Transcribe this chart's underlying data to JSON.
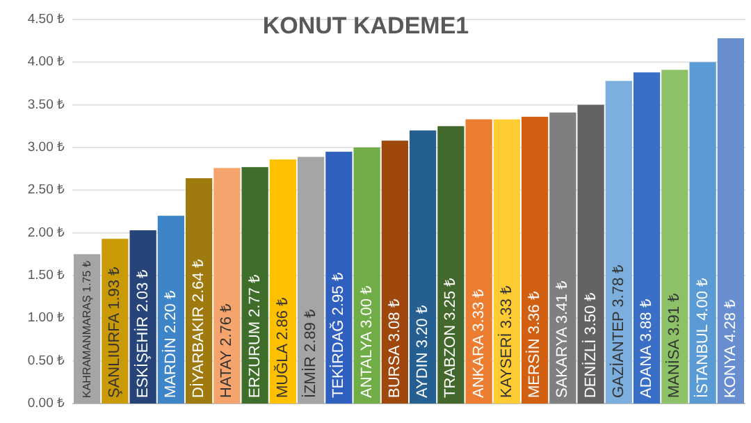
{
  "chart_data": {
    "type": "bar",
    "title": "KONUT KADEME1",
    "categories": [
      "KAHRAMANMARAŞ",
      "ŞANLIURFA",
      "ESKİŞEHİR",
      "MARDİN",
      "DİYARBAKIR",
      "HATAY",
      "ERZURUM",
      "MUĞLA",
      "İZMİR",
      "TEKİRDAĞ",
      "ANTALYA",
      "BURSA",
      "AYDIN",
      "TRABZON",
      "ANKARA",
      "KAYSERİ",
      "MERSİN",
      "SAKARYA",
      "DENİZLİ",
      "GAZİANTEP",
      "ADANA",
      "MANİSA",
      "İSTANBUL",
      "KONYA"
    ],
    "values": [
      1.75,
      1.93,
      2.03,
      2.2,
      2.64,
      2.76,
      2.77,
      2.86,
      2.89,
      2.95,
      3.0,
      3.08,
      3.2,
      3.25,
      3.33,
      3.33,
      3.36,
      3.41,
      3.5,
      3.78,
      3.88,
      3.91,
      4.0,
      4.28
    ],
    "value_labels": [
      "1.75 ₺",
      "1.93 ₺",
      "2.03 ₺",
      "2.20 ₺",
      "2.64 ₺",
      "2.76 ₺",
      "2.77 ₺",
      "2.86 ₺",
      "2.89 ₺",
      "2.95 ₺",
      "3.00 ₺",
      "3.08 ₺",
      "3.20 ₺",
      "3.25 ₺",
      "3.33 ₺",
      "3.33 ₺",
      "3.36 ₺",
      "3.41 ₺",
      "3.50 ₺",
      "3.78 ₺",
      "3.88 ₺",
      "3.91 ₺",
      "4.00 ₺",
      "4.28 ₺"
    ],
    "colors": [
      "#a5a5a5",
      "#c99a06",
      "#264478",
      "#3d85c6",
      "#9e7a0f",
      "#f4a46c",
      "#3f6e2a",
      "#ffc000",
      "#a5a5a5",
      "#2f5fbf",
      "#70ad47",
      "#9e480e",
      "#255e91",
      "#43682b",
      "#ed7d31",
      "#ffcc33",
      "#d26012",
      "#7f7f7f",
      "#636363",
      "#7cafdd",
      "#3a6fc8",
      "#8cc168",
      "#5b9bd5",
      "#698ed0"
    ],
    "ylim": [
      0,
      4.5
    ],
    "yticks": [
      {
        "value": 0,
        "label": "0.00 ₺"
      },
      {
        "value": 0.5,
        "label": "0.50 ₺"
      },
      {
        "value": 1,
        "label": "1.00 ₺"
      },
      {
        "value": 1.5,
        "label": "1.50 ₺"
      },
      {
        "value": 2,
        "label": "2.00 ₺"
      },
      {
        "value": 2.5,
        "label": "2.50 ₺"
      },
      {
        "value": 3,
        "label": "3.00 ₺"
      },
      {
        "value": 3.5,
        "label": "3.50 ₺"
      },
      {
        "value": 4,
        "label": "4.00 ₺"
      },
      {
        "value": 4.5,
        "label": "4.50 ₺"
      }
    ],
    "grid": "y"
  }
}
